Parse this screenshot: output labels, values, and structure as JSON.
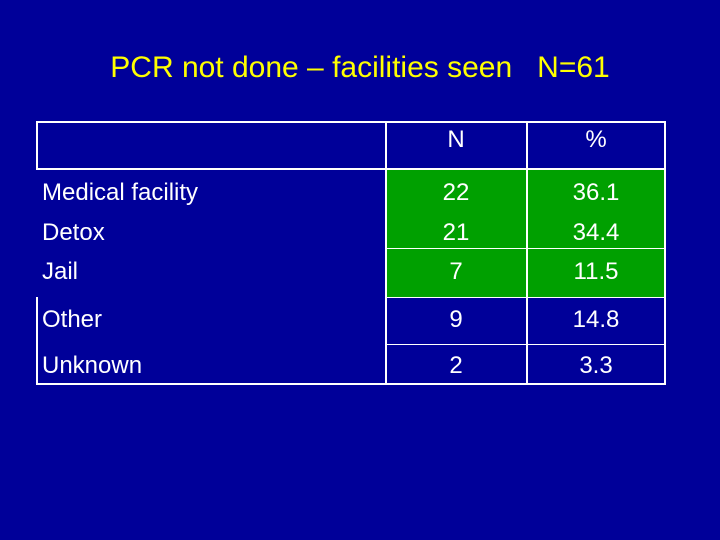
{
  "slide": {
    "title": "PCR not done – facilities seen   N=61"
  },
  "table": {
    "headers": [
      "",
      "N",
      "%"
    ],
    "rows": [
      {
        "label": "Medical facility",
        "n": "22",
        "pct": "36.1"
      },
      {
        "label": "Detox",
        "n": "21",
        "pct": "34.4"
      },
      {
        "label": "Jail",
        "n": "7",
        "pct": "11.5"
      },
      {
        "label": "Other",
        "n": "9",
        "pct": "14.8"
      },
      {
        "label": "Unknown",
        "n": "2",
        "pct": "3.3"
      }
    ]
  },
  "colors": {
    "background": "#000099",
    "title": "#ffff00",
    "highlight": "#00a000",
    "text": "#ffffff"
  }
}
